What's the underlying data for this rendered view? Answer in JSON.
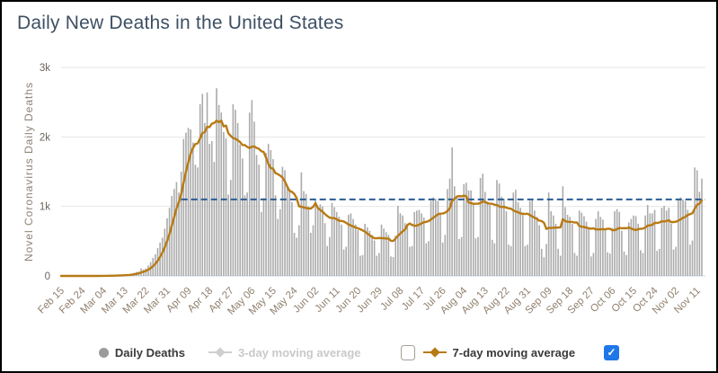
{
  "title": "Daily New Deaths in the United States",
  "legend": {
    "daily_deaths_label": "Daily Deaths",
    "ma3_label": "3-day moving average",
    "ma3_enabled": false,
    "ma7_label": "7-day moving average",
    "ma7_checkbox_checked": false,
    "right_checkbox_checked": true,
    "check_glyph": "✓"
  },
  "colors": {
    "title": "#3d4f63",
    "bars": "#ababab",
    "ma7_line": "#b87a14",
    "reference_dashed": "#2b5c94",
    "grid": "#e6e6e6",
    "axis_line": "#ccd6eb",
    "ytick_label": "#6b655c",
    "xtick_label": "#90806e",
    "yaxis_title": "#8d8478",
    "legend_text": "#3a3a3a",
    "legend_disabled": "#c9c9c9",
    "marker_gray": "#9b9b9b",
    "checkbox_blue": "#1e78e8"
  },
  "chart_data": {
    "type": "bar",
    "title": "Daily New Deaths in the United States",
    "xlabel": "",
    "ylabel": "Novel Coronavirus Daily Deaths",
    "ylim": [
      0,
      3000
    ],
    "ytick_values": [
      0,
      1000,
      2000,
      3000
    ],
    "ytick_labels": [
      "0",
      "1k",
      "2k",
      "3k"
    ],
    "x_start_label": "Feb 15",
    "x_tick_interval_days": 9,
    "x_tick_labels": [
      "Feb 15",
      "Feb 24",
      "Mar 04",
      "Mar 13",
      "Mar 22",
      "Mar 31",
      "Apr 09",
      "Apr 18",
      "Apr 27",
      "May 06",
      "May 15",
      "May 24",
      "Jun 02",
      "Jun 11",
      "Jun 20",
      "Jun 29",
      "Jul 08",
      "Jul 17",
      "Jul 26",
      "Aug 04",
      "Aug 13",
      "Aug 22",
      "Aug 31",
      "Sep 09",
      "Sep 18",
      "Sep 27",
      "Oct 06",
      "Oct 15",
      "Oct 24",
      "Nov 02",
      "Nov 11"
    ],
    "grid": "horizontal",
    "legend_position": "bottom",
    "reference_line": {
      "value": 1100,
      "style": "dashed"
    },
    "series": [
      {
        "name": "Daily Deaths",
        "type": "bar",
        "visible": true,
        "values": [
          0,
          0,
          0,
          0,
          0,
          0,
          0,
          0,
          0,
          0,
          0,
          0,
          0,
          0,
          1,
          1,
          2,
          3,
          4,
          2,
          4,
          5,
          7,
          6,
          10,
          12,
          10,
          18,
          22,
          25,
          33,
          45,
          58,
          62,
          110,
          90,
          110,
          150,
          200,
          260,
          310,
          400,
          480,
          550,
          680,
          830,
          980,
          1150,
          1250,
          1350,
          1200,
          1500,
          1970,
          2060,
          2130,
          2110,
          1920,
          1600,
          1560,
          2470,
          2620,
          2200,
          2640,
          1900,
          1940,
          1640,
          2700,
          2460,
          2350,
          2070,
          1980,
          1170,
          1380,
          2470,
          2390,
          2200,
          1890,
          1690,
          1160,
          1200,
          2350,
          2530,
          2220,
          1740,
          1600,
          920,
          1120,
          1770,
          1900,
          1810,
          1680,
          1160,
          820,
          960,
          1570,
          1520,
          1310,
          1220,
          1060,
          620,
          550,
          730,
          1490,
          1220,
          1180,
          1000,
          620,
          730,
          1090,
          1000,
          1030,
          1000,
          760,
          430,
          560,
          1050,
          990,
          920,
          850,
          740,
          380,
          420,
          880,
          900,
          820,
          740,
          660,
          290,
          300,
          750,
          700,
          650,
          590,
          510,
          290,
          330,
          740,
          680,
          630,
          590,
          280,
          270,
          580,
          1010,
          900,
          870,
          760,
          740,
          420,
          430,
          920,
          940,
          950,
          900,
          840,
          470,
          500,
          1080,
          1130,
          1110,
          1080,
          900,
          480,
          590,
          1250,
          1400,
          1850,
          1290,
          1130,
          530,
          560,
          1320,
          1340,
          1230,
          1230,
          1050,
          540,
          560,
          1410,
          1470,
          1210,
          1070,
          1020,
          520,
          470,
          1380,
          1330,
          1140,
          1110,
          930,
          450,
          430,
          1200,
          1240,
          1060,
          980,
          900,
          430,
          450,
          1080,
          1090,
          940,
          850,
          730,
          390,
          270,
          460,
          1200,
          930,
          870,
          750,
          390,
          290,
          1290,
          990,
          880,
          850,
          750,
          330,
          290,
          940,
          910,
          860,
          780,
          700,
          280,
          330,
          820,
          930,
          850,
          810,
          670,
          340,
          320,
          690,
          930,
          960,
          920,
          650,
          350,
          300,
          770,
          820,
          870,
          860,
          750,
          370,
          330,
          870,
          1020,
          900,
          900,
          950,
          360,
          390,
          980,
          1010,
          940,
          980,
          750,
          380,
          420,
          1090,
          1130,
          1100,
          1080,
          950,
          450,
          510,
          1560,
          1520,
          1210,
          1400
        ]
      },
      {
        "name": "3-day moving average",
        "type": "line",
        "visible": false,
        "values": []
      },
      {
        "name": "7-day moving average",
        "type": "line",
        "visible": true,
        "derived_from": "7-day moving average of Daily Deaths values"
      }
    ]
  }
}
